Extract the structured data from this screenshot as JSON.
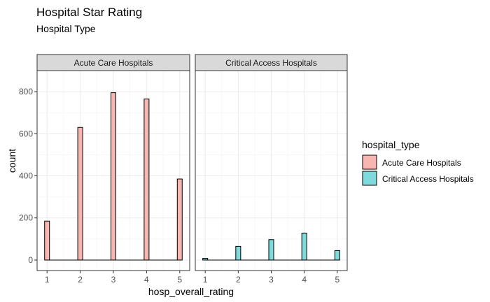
{
  "chart_data": {
    "type": "bar",
    "title": "Hospital Star Rating",
    "subtitle": "Hospital Type",
    "xlabel": "hosp_overall_rating",
    "ylabel": "count",
    "x_ticks": [
      "1",
      "2",
      "3",
      "4",
      "5"
    ],
    "y_ticks": [
      "0",
      "200",
      "400",
      "600",
      "800"
    ],
    "ylim": [
      -50,
      900
    ],
    "xlim": [
      0.7,
      5.3
    ],
    "grid": true,
    "legend": {
      "title": "hospital_type",
      "position": "right",
      "entries": [
        {
          "label": "Acute Care Hospitals",
          "color": "#F8B6B0"
        },
        {
          "label": "Critical Access Hospitals",
          "color": "#7FDADB"
        }
      ]
    },
    "panels": [
      {
        "strip": "Acute Care Hospitals",
        "color": "#F8B6B0",
        "x": [
          1,
          2,
          3,
          4,
          5
        ],
        "values": [
          185,
          630,
          795,
          765,
          385
        ]
      },
      {
        "strip": "Critical Access Hospitals",
        "color": "#7FDADB",
        "x": [
          1,
          2,
          3,
          4,
          5
        ],
        "values": [
          8,
          65,
          97,
          128,
          45
        ]
      }
    ]
  }
}
